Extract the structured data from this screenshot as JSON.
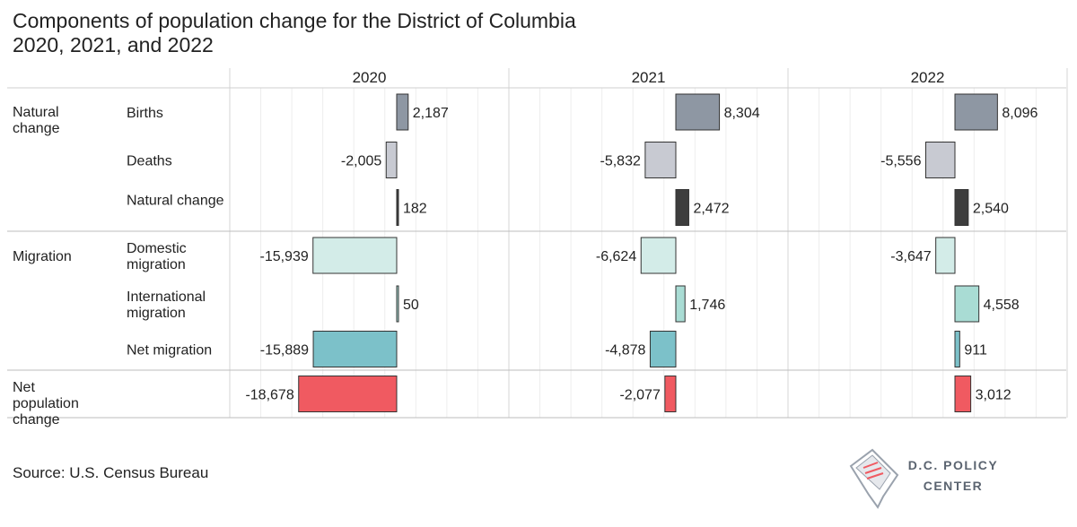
{
  "title": {
    "line1": "Components of population change for the District of Columbia",
    "line2": "2020, 2021, and 2022"
  },
  "source": "Source: U.S. Census Bureau",
  "logo": {
    "line1": "D.C. POLICY",
    "line2": "CENTER"
  },
  "chart_data": {
    "type": "bar",
    "orientation": "horizontal",
    "years": [
      "2020",
      "2021",
      "2022"
    ],
    "groups": [
      {
        "label": "Natural change",
        "rows": [
          "Births",
          "Deaths",
          "Natural change"
        ]
      },
      {
        "label": "Migration",
        "rows": [
          "Domestic migration",
          "International migration",
          "Net migration"
        ]
      },
      {
        "label": "Net population change",
        "rows": [
          ""
        ]
      }
    ],
    "rows": [
      {
        "group_label": "Natural change",
        "label": "Births",
        "color": "#8e97a3",
        "values": [
          2187,
          8304,
          8096
        ],
        "labels": [
          "2,187",
          "8,304",
          "8,096"
        ]
      },
      {
        "group_label": "",
        "label": "Deaths",
        "color": "#c8cad2",
        "values": [
          -2005,
          -5832,
          -5556
        ],
        "labels": [
          "-2,005",
          "-5,832",
          "-5,556"
        ]
      },
      {
        "group_label": "",
        "label": "Natural change",
        "color": "#3d3d3d",
        "values": [
          182,
          2472,
          2540
        ],
        "labels": [
          "182",
          "2,472",
          "2,540"
        ]
      },
      {
        "group_label": "Migration",
        "label": "Domestic migration",
        "color": "#d3ece8",
        "values": [
          -15939,
          -6624,
          -3647
        ],
        "labels": [
          "-15,939",
          "-6,624",
          "-3,647"
        ]
      },
      {
        "group_label": "",
        "label": "International migration",
        "color": "#a9dcd4",
        "values": [
          50,
          1746,
          4558
        ],
        "labels": [
          "50",
          "1,746",
          "4,558"
        ]
      },
      {
        "group_label": "",
        "label": "Net migration",
        "color": "#7cc1c9",
        "values": [
          -15889,
          -4878,
          911
        ],
        "labels": [
          "-15,889",
          "-4,878",
          "911"
        ]
      },
      {
        "group_label": "Net population change",
        "label": "",
        "color": "#f05a61",
        "values": [
          -18678,
          -2077,
          3012
        ],
        "labels": [
          "-18,678",
          "-2,077",
          "3,012"
        ]
      }
    ]
  }
}
